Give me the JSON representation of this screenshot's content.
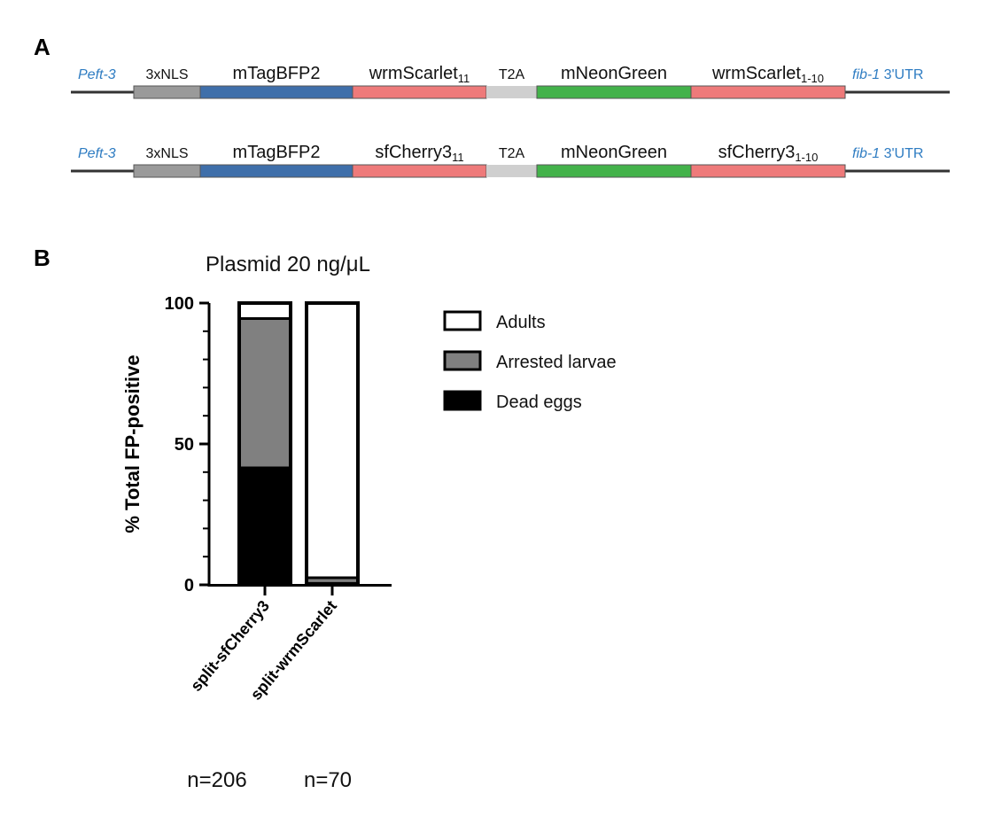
{
  "panel_a": {
    "label": "A",
    "constructs": [
      {
        "promoter": "Peft-3",
        "utr_gene": "fib-1",
        "utr_suffix": " 3'UTR",
        "segments": [
          {
            "label": "3xNLS",
            "sub": "",
            "color": "#9a9a9a",
            "small": true
          },
          {
            "label": "mTagBFP2",
            "sub": "",
            "color": "#3f6faa",
            "small": false
          },
          {
            "label": "wrmScarlet",
            "sub": "11",
            "color": "#ee7a7a",
            "small": false
          },
          {
            "label": "T2A",
            "sub": "",
            "color": "#cfcfcf",
            "small": true
          },
          {
            "label": "mNeonGreen",
            "sub": "",
            "color": "#43b24a",
            "small": false
          },
          {
            "label": "wrmScarlet",
            "sub": "1-10",
            "color": "#ee7a7a",
            "small": false
          }
        ]
      },
      {
        "promoter": "Peft-3",
        "utr_gene": "fib-1",
        "utr_suffix": " 3'UTR",
        "segments": [
          {
            "label": "3xNLS",
            "sub": "",
            "color": "#9a9a9a",
            "small": true
          },
          {
            "label": "mTagBFP2",
            "sub": "",
            "color": "#3f6faa",
            "small": false
          },
          {
            "label": "sfCherry3",
            "sub": "11",
            "color": "#ee7a7a",
            "small": false
          },
          {
            "label": "T2A",
            "sub": "",
            "color": "#cfcfcf",
            "small": true
          },
          {
            "label": "mNeonGreen",
            "sub": "",
            "color": "#43b24a",
            "small": false
          },
          {
            "label": "sfCherry3",
            "sub": "1-10",
            "color": "#ee7a7a",
            "small": false
          }
        ]
      }
    ]
  },
  "panel_b": {
    "label": "B",
    "n_labels": [
      "n=206",
      "n=70"
    ]
  },
  "chart_data": {
    "type": "bar",
    "stacked": true,
    "title": "Plasmid 20 ng/μL",
    "ylabel": "% Total FP-positive",
    "xlabel": "",
    "ylim": [
      0,
      100
    ],
    "yticks": [
      0,
      50,
      100
    ],
    "categories": [
      "split-sfCherry3",
      "split-wrmScarlet"
    ],
    "series": [
      {
        "name": "Dead eggs",
        "color": "#000000",
        "values": [
          41.5,
          0.5
        ]
      },
      {
        "name": "Arrested larvae",
        "color": "#808080",
        "values": [
          53,
          2
        ]
      },
      {
        "name": "Adults",
        "color": "#ffffff",
        "values": [
          5.5,
          97.5
        ]
      }
    ],
    "legend_order": [
      "Adults",
      "Arrested larvae",
      "Dead eggs"
    ],
    "legend_position": "right",
    "grid": false
  }
}
